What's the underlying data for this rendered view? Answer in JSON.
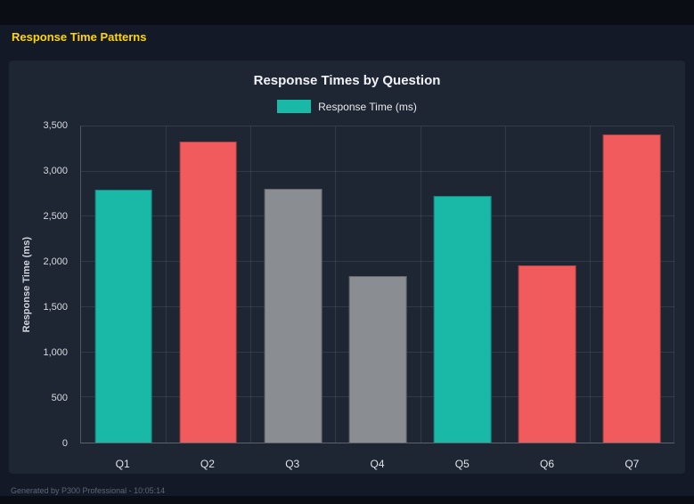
{
  "page": {
    "title": "Response Time Patterns",
    "footer": "Generated by P300 Professional - 10:05:14"
  },
  "colors": {
    "background": "#141927",
    "panel": "#1e2634",
    "accent_yellow": "#ffd700",
    "teal": "#19b8a7",
    "red": "#f15b5e",
    "gray": "#8a8d91"
  },
  "chart_data": {
    "type": "bar",
    "title": "Response Times by Question",
    "legend": [
      {
        "label": "Response Time (ms)",
        "color": "#19b8a7"
      }
    ],
    "categories": [
      "Q1",
      "Q2",
      "Q3",
      "Q4",
      "Q5",
      "Q6",
      "Q7"
    ],
    "values": [
      2800,
      3330,
      2810,
      1845,
      2735,
      1960,
      3410
    ],
    "bar_colors": [
      "#19b8a7",
      "#f15b5e",
      "#8a8d91",
      "#8a8d91",
      "#19b8a7",
      "#f15b5e",
      "#f15b5e"
    ],
    "xlabel": "",
    "ylabel": "Response Time (ms)",
    "ylim": [
      0,
      3500
    ],
    "yticks": [
      0,
      500,
      1000,
      1500,
      2000,
      2500,
      3000,
      3500
    ],
    "ytick_labels": [
      "0",
      "500",
      "1,000",
      "1,500",
      "2,000",
      "2,500",
      "3,000",
      "3,500"
    ],
    "grid": true,
    "legend_position": "top"
  }
}
